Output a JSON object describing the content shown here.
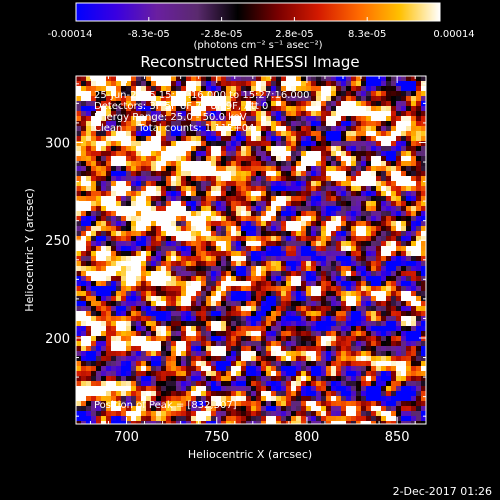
{
  "colorbar": {
    "tick_labels": [
      "-0.00014",
      "-8.3e-05",
      "-2.8e-05",
      "2.8e-05",
      "8.3e-05",
      "0.00014"
    ],
    "units": "(photons cm⁻² s⁻¹ asec⁻²)",
    "range": [
      -0.00014,
      0.00014
    ],
    "colormap_stops": [
      "#0000ff",
      "#3a00e0",
      "#6a1fa0",
      "#5a2a6e",
      "#000000",
      "#7a0000",
      "#d41a00",
      "#ff6a00",
      "#ffc000",
      "#ffffff"
    ]
  },
  "chart_data": {
    "type": "heatmap",
    "title": "Reconstructed RHESSI Image",
    "xlabel": "Heliocentric X (arcsec)",
    "ylabel": "Heliocentric Y (arcsec)",
    "xlim": [
      672,
      866
    ],
    "ylim": [
      156,
      334
    ],
    "x_ticks": [
      700,
      750,
      800,
      850
    ],
    "y_ticks": [
      200,
      250,
      300
    ],
    "x_tick_labels": [
      "700",
      "750",
      "800",
      "850"
    ],
    "y_tick_labels": [
      "200",
      "250",
      "300"
    ],
    "annotations": [
      "25-Jun-2015 15:17:16.000 to 15:27:16.000",
      "Detectors: 3F 5F 6F 7F 8F 9F, Att 0",
      "Energy Range: 25.0 - 50.0 keV",
      "Clean     Total counts: 1.11E+04"
    ],
    "peak_label": "Position of Peak = [832,307]",
    "peak": {
      "x": 832,
      "y": 307
    }
  },
  "footer": {
    "timestamp": "2-Dec-2017 01:26"
  }
}
